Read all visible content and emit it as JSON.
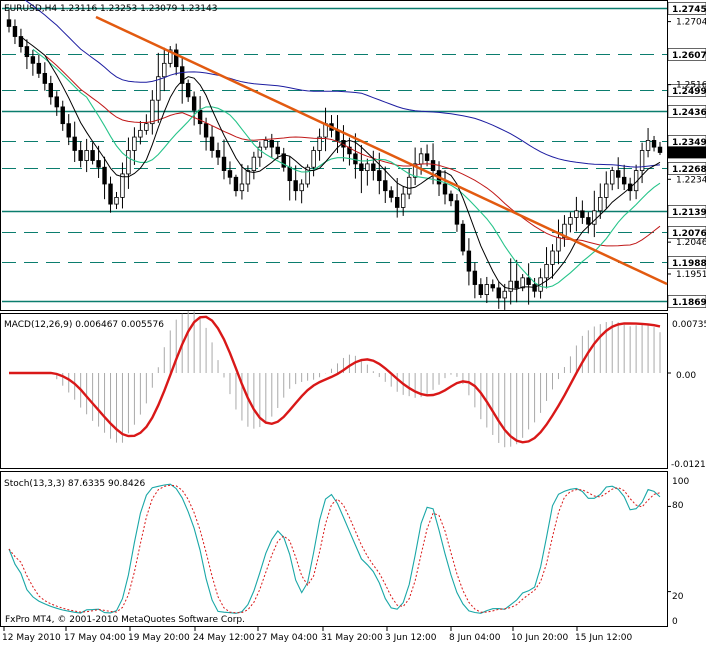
{
  "main": {
    "symbol_line": "EURUSD,H4  1.23116 1.23253 1.23079 1.23143",
    "ylim": [
      1.185,
      1.276
    ],
    "tick_labels": [
      "1.27045",
      "1.25165",
      "1.22340",
      "1.20465",
      "1.19515"
    ],
    "levels": [
      {
        "value": 1.2745,
        "label": "1.2745",
        "solid": true,
        "color": "#0b7d6e"
      },
      {
        "value": 1.26078,
        "label": "1.26078",
        "solid": false,
        "color": "#0b7d6e"
      },
      {
        "value": 1.2499,
        "label": "1.2499",
        "solid": false,
        "color": "#0b7d6e"
      },
      {
        "value": 1.24365,
        "label": "1.24365",
        "solid": true,
        "color": "#0b7d6e"
      },
      {
        "value": 1.2349,
        "label": "1.2349",
        "solid": false,
        "color": "#0b7d6e"
      },
      {
        "value": 1.22684,
        "label": "1.22684",
        "solid": false,
        "color": "#0b7d6e"
      },
      {
        "value": 1.21393,
        "label": "1.21393",
        "solid": true,
        "color": "#0b7d6e"
      },
      {
        "value": 1.20763,
        "label": "1.20763",
        "solid": false,
        "color": "#0b7d6e"
      },
      {
        "value": 1.1988,
        "label": "1.1988",
        "solid": false,
        "color": "#0b7d6e"
      },
      {
        "value": 1.18694,
        "label": "1.18694",
        "solid": true,
        "color": "#0b7d6e"
      }
    ],
    "current_price_label": "1.23143",
    "colors": {
      "candles": "#000000",
      "trendline": "#e25a10",
      "ma_blue": "#1c1ca0",
      "ma_red": "#c01818",
      "ma_green": "#26c48a",
      "ma_black": "#000000"
    }
  },
  "macd": {
    "label": "MACD(12,26,9) 0.006467 0.005576",
    "tick_labels": [
      "0.00735",
      "0.00",
      "-0.01212"
    ],
    "ylim": [
      -0.01212,
      0.00735
    ],
    "colors": {
      "histogram": "#a9a9a9",
      "signal": "#d91818"
    }
  },
  "stoch": {
    "label": "Stoch(13,3,3) 87.6335 90.8426",
    "tick_labels": [
      "100",
      "80",
      "20",
      "0"
    ],
    "ylim": [
      0,
      100
    ],
    "colors": {
      "main": "#1aa7a7",
      "signal": "#d91818"
    }
  },
  "footer": {
    "copyright": "FxPro MT4, © 2001-2010 MetaQuotes Software Corp."
  },
  "time_axis": [
    "12 May 2010",
    "17 May 04:00",
    "19 May 20:00",
    "24 May 12:00",
    "27 May 04:00",
    "31 May 20:00",
    "3 Jun 12:00",
    "8 Jun 04:00",
    "10 Jun 20:00",
    "15 Jun 12:00"
  ],
  "chart_data": {
    "type": "candlestick",
    "symbol": "EURUSD",
    "timeframe": "H4",
    "ohlc_last": {
      "open": 1.23116,
      "high": 1.23253,
      "low": 1.23079,
      "close": 1.23143
    },
    "close_path": [
      1.269,
      1.266,
      1.263,
      1.26,
      1.258,
      1.255,
      1.252,
      1.248,
      1.245,
      1.24,
      1.236,
      1.232,
      1.229,
      1.232,
      1.229,
      1.227,
      1.222,
      1.216,
      1.218,
      1.225,
      1.232,
      1.236,
      1.238,
      1.24,
      1.247,
      1.254,
      1.258,
      1.262,
      1.257,
      1.252,
      1.248,
      1.244,
      1.24,
      1.236,
      1.232,
      1.23,
      1.226,
      1.224,
      1.22,
      1.222,
      1.226,
      1.23,
      1.233,
      1.235,
      1.233,
      1.231,
      1.227,
      1.223,
      1.22,
      1.222,
      1.227,
      1.232,
      1.236,
      1.24,
      1.238,
      1.235,
      1.233,
      1.231,
      1.228,
      1.226,
      1.228,
      1.226,
      1.223,
      1.22,
      1.218,
      1.215,
      1.219,
      1.224,
      1.228,
      1.231,
      1.229,
      1.226,
      1.222,
      1.219,
      1.217,
      1.21,
      1.202,
      1.196,
      1.192,
      1.189,
      1.192,
      1.191,
      1.188,
      1.19,
      1.193,
      1.191,
      1.194,
      1.192,
      1.19,
      1.194,
      1.198,
      1.202,
      1.206,
      1.21,
      1.212,
      1.214,
      1.212,
      1.21,
      1.214,
      1.218,
      1.222,
      1.226,
      1.224,
      1.222,
      1.22,
      1.226,
      1.232,
      1.235,
      1.233,
      1.2314
    ]
  }
}
